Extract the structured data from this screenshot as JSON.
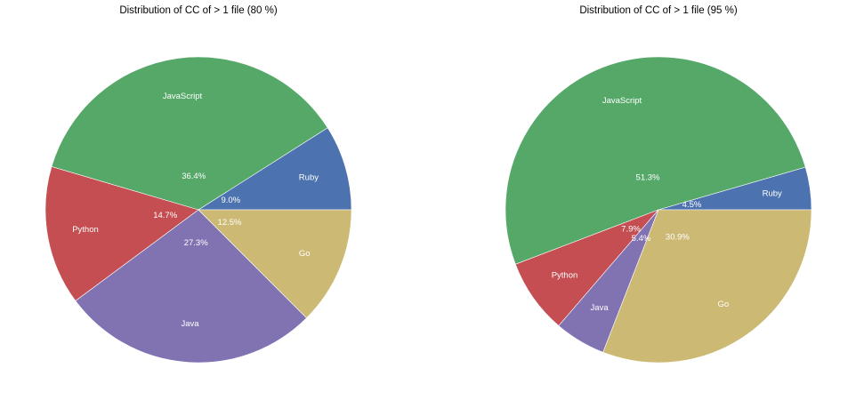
{
  "chart_data": [
    {
      "type": "pie",
      "title": "Distribution of CC of > 1 file (80 %)",
      "categories": [
        "Ruby",
        "JavaScript",
        "Python",
        "Java",
        "Go"
      ],
      "values": [
        9.0,
        36.4,
        14.7,
        27.3,
        12.5
      ],
      "value_labels": [
        "9.0%",
        "36.4%",
        "14.7%",
        "27.3%",
        "12.5%"
      ],
      "colors": [
        "#4c72b0",
        "#55a868",
        "#c44e52",
        "#8172b2",
        "#ccb974"
      ],
      "start_angle_deg": 0,
      "direction": "counterclockwise"
    },
    {
      "type": "pie",
      "title": "Distribution of CC of > 1 file (95 %)",
      "categories": [
        "Ruby",
        "JavaScript",
        "Python",
        "Java",
        "Go"
      ],
      "values": [
        4.5,
        51.3,
        7.9,
        5.4,
        30.9
      ],
      "value_labels": [
        "4.5%",
        "51.3%",
        "7.9%",
        "5.4%",
        "30.9%"
      ],
      "colors": [
        "#4c72b0",
        "#55a868",
        "#c44e52",
        "#8172b2",
        "#ccb974"
      ],
      "start_angle_deg": 0,
      "direction": "counterclockwise"
    }
  ]
}
